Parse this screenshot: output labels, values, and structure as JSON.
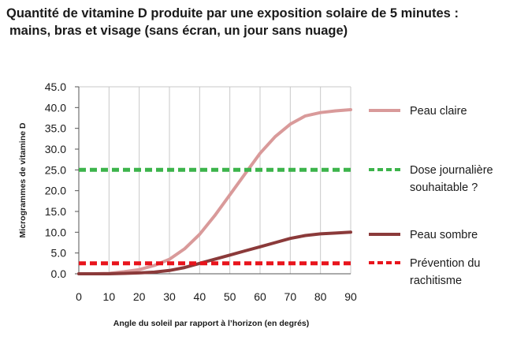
{
  "chart_data": {
    "type": "line",
    "title_line1": "Quantité de vitamine D produite par une exposition solaire de 5 minutes :",
    "title_line2": "mains, bras et visage (sans écran, un jour sans nuage)",
    "xlabel": "Angle du soleil par rapport à l’horizon (en degrés)",
    "ylabel": "Microgrammes de vitamine D",
    "xlim": [
      0,
      90
    ],
    "ylim": [
      0,
      45
    ],
    "x_ticks": [
      "0",
      "10",
      "20",
      "30",
      "40",
      "50",
      "60",
      "70",
      "80",
      "90"
    ],
    "y_ticks": [
      "0.0",
      "5.0",
      "10.0",
      "15.0",
      "20.0",
      "25.0",
      "30.0",
      "35.0",
      "40.0",
      "45.0"
    ],
    "grid": "vertical",
    "legend_position": "right",
    "series": [
      {
        "name": "Peau claire",
        "legend_lines": [
          "Peau claire"
        ],
        "color": "#d99a9a",
        "style": "solid",
        "x": [
          0,
          5,
          10,
          15,
          20,
          25,
          30,
          35,
          40,
          45,
          50,
          55,
          60,
          65,
          70,
          75,
          80,
          85,
          90
        ],
        "y": [
          0.0,
          0.0,
          0.1,
          0.5,
          1.0,
          2.0,
          3.5,
          6.0,
          9.5,
          14.0,
          19.0,
          24.0,
          29.0,
          33.0,
          36.0,
          38.0,
          38.8,
          39.2,
          39.5
        ]
      },
      {
        "name": "Dose journalière souhaitable ?",
        "legend_lines": [
          "Dose journalière",
          "souhaitable ?"
        ],
        "color": "#3cb44b",
        "style": "dashed",
        "x": [
          0,
          90
        ],
        "y": [
          25.0,
          25.0
        ]
      },
      {
        "name": "Peau sombre",
        "legend_lines": [
          "Peau sombre"
        ],
        "color": "#8b3a3a",
        "style": "solid",
        "x": [
          0,
          5,
          10,
          15,
          20,
          25,
          30,
          35,
          40,
          45,
          50,
          55,
          60,
          65,
          70,
          75,
          80,
          85,
          90
        ],
        "y": [
          0.0,
          0.0,
          0.0,
          0.1,
          0.2,
          0.4,
          0.8,
          1.5,
          2.5,
          3.5,
          4.5,
          5.5,
          6.5,
          7.5,
          8.5,
          9.2,
          9.6,
          9.8,
          10.0
        ]
      },
      {
        "name": "Prévention du rachitisme",
        "legend_lines": [
          "Prévention du",
          "rachitisme"
        ],
        "color": "#e8141c",
        "style": "dashed",
        "x": [
          0,
          90
        ],
        "y": [
          2.5,
          2.5
        ]
      }
    ]
  }
}
